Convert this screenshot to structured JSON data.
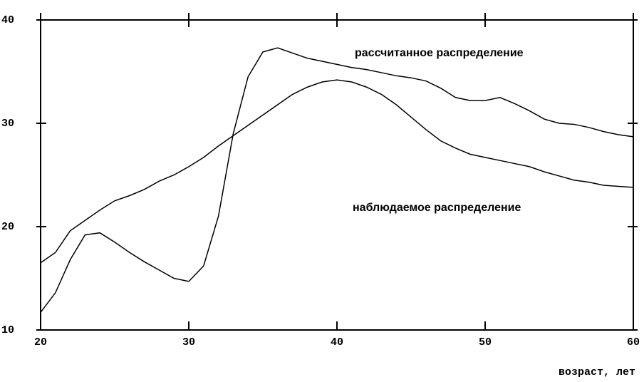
{
  "chart_data": {
    "type": "line",
    "x_label": "возраст, лет",
    "x": [
      20,
      21,
      22,
      23,
      24,
      25,
      26,
      27,
      28,
      29,
      30,
      31,
      32,
      33,
      34,
      35,
      36,
      37,
      38,
      39,
      40,
      41,
      42,
      43,
      44,
      45,
      46,
      47,
      48,
      49,
      50,
      51,
      52,
      53,
      54,
      55,
      56,
      57,
      58,
      59,
      60
    ],
    "series": [
      {
        "name": "рассчитанное распределение",
        "color": "#000000",
        "values": [
          11.7,
          13.6,
          16.8,
          19.2,
          19.4,
          18.5,
          17.5,
          16.6,
          15.8,
          15.0,
          14.7,
          16.2,
          21.0,
          29.0,
          34.5,
          36.9,
          37.3,
          36.8,
          36.3,
          36.0,
          35.7,
          35.4,
          35.2,
          34.9,
          34.6,
          34.4,
          34.1,
          33.4,
          32.5,
          32.2,
          32.2,
          32.5,
          31.9,
          31.2,
          30.4,
          30.0,
          29.9,
          29.6,
          29.2,
          28.9,
          28.7
        ]
      },
      {
        "name": "наблюдаемое распределение",
        "color": "#000000",
        "values": [
          16.5,
          17.5,
          19.6,
          20.6,
          21.6,
          22.5,
          23.0,
          23.6,
          24.4,
          25.0,
          25.8,
          26.7,
          27.8,
          28.8,
          29.8,
          30.8,
          31.8,
          32.8,
          33.5,
          34.0,
          34.2,
          34.0,
          33.5,
          32.8,
          31.8,
          30.6,
          29.4,
          28.3,
          27.6,
          27.0,
          26.7,
          26.4,
          26.1,
          25.8,
          25.3,
          24.9,
          24.5,
          24.3,
          24.0,
          23.9,
          23.8
        ]
      }
    ],
    "xlim": [
      20,
      60
    ],
    "xticks": [
      20,
      30,
      40,
      50,
      60
    ],
    "ylim": [
      10,
      40
    ],
    "yticks": [
      10,
      20,
      30,
      40
    ],
    "grid": false
  }
}
